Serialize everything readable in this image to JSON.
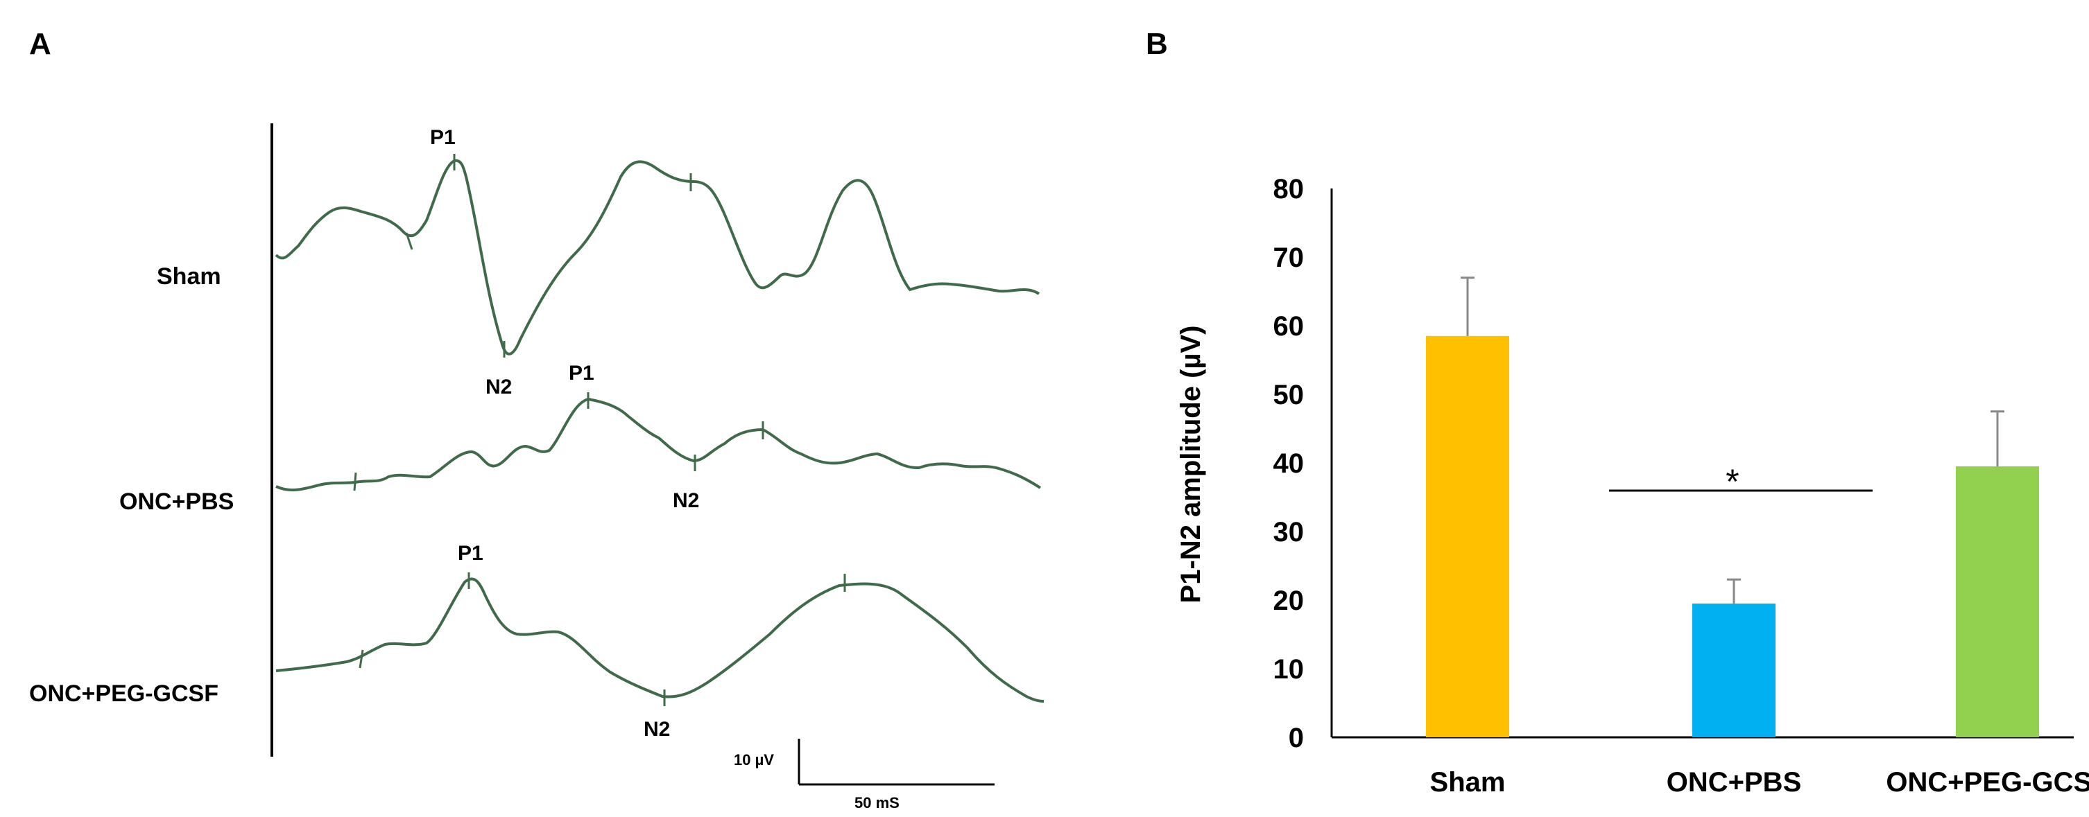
{
  "panel_a": {
    "letter": "A",
    "traces": [
      {
        "label": "Sham",
        "p1": "P1",
        "n2": "N2"
      },
      {
        "label": "ONC+PBS",
        "p1": "P1",
        "n2": "N2"
      },
      {
        "label": "ONC+PEG-GCSF",
        "p1": "P1",
        "n2": "N2"
      }
    ],
    "scale_bar": {
      "amplitude_label": "10 µV",
      "time_label": "50 mS"
    },
    "trace_color": "#3f6b4a"
  },
  "panel_b": {
    "letter": "B"
  },
  "chart_data": {
    "type": "bar",
    "categories": [
      "Sham",
      "ONC+PBS",
      "ONC+PEG-GCSF"
    ],
    "values": [
      58.5,
      19.5,
      39.5
    ],
    "errors": [
      8.5,
      3.5,
      8.0
    ],
    "colors": [
      "#ffc000",
      "#00b0f0",
      "#92d050"
    ],
    "title": "",
    "xlabel": "",
    "ylabel": "P1-N2 amplitude (µV)",
    "ylim": [
      0,
      80
    ],
    "yticks": [
      0,
      10,
      20,
      30,
      40,
      50,
      60,
      70,
      80
    ],
    "grid": false,
    "significance": {
      "label": "*",
      "between": [
        "ONC+PBS",
        "ONC+PEG-GCSF"
      ]
    }
  }
}
